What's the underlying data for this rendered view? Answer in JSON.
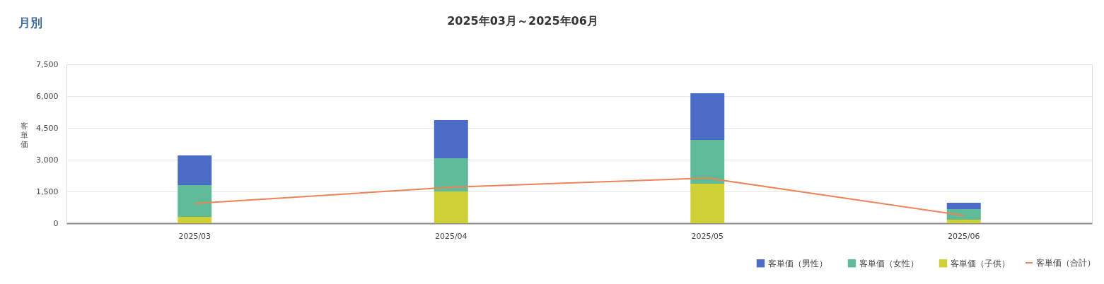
{
  "chart_data": {
    "type": "bar",
    "title": "2025年03月～2025年06月",
    "subtitle": "月別",
    "ylabel": "客単価",
    "categories": [
      "2025/03",
      "2025/04",
      "2025/05",
      "2025/06"
    ],
    "stacked": true,
    "series": [
      {
        "name": "客単価（子供）",
        "color": "#d0cf35",
        "values": [
          300,
          1500,
          1870,
          170
        ]
      },
      {
        "name": "客単価（女性）",
        "color": "#5fbb97",
        "values": [
          1500,
          1570,
          2060,
          500
        ]
      },
      {
        "name": "客単価（男性）",
        "color": "#4a6cc6",
        "values": [
          1400,
          1800,
          2200,
          300
        ]
      },
      {
        "name": "客単価（合計）",
        "type": "line",
        "color": "#ee8357",
        "values": [
          930,
          1700,
          2130,
          370
        ]
      }
    ],
    "ylim": [
      0,
      7500
    ],
    "yticks": [
      0,
      {
        "value": 1500,
        "label": "1,500"
      },
      {
        "value": 3000,
        "label": "3,000"
      },
      {
        "value": 4500,
        "label": "4,500"
      },
      {
        "value": 6000,
        "label": "6,000"
      },
      {
        "value": 7500,
        "label": "7,500"
      }
    ],
    "grid": "y",
    "legend": "bottom right"
  }
}
